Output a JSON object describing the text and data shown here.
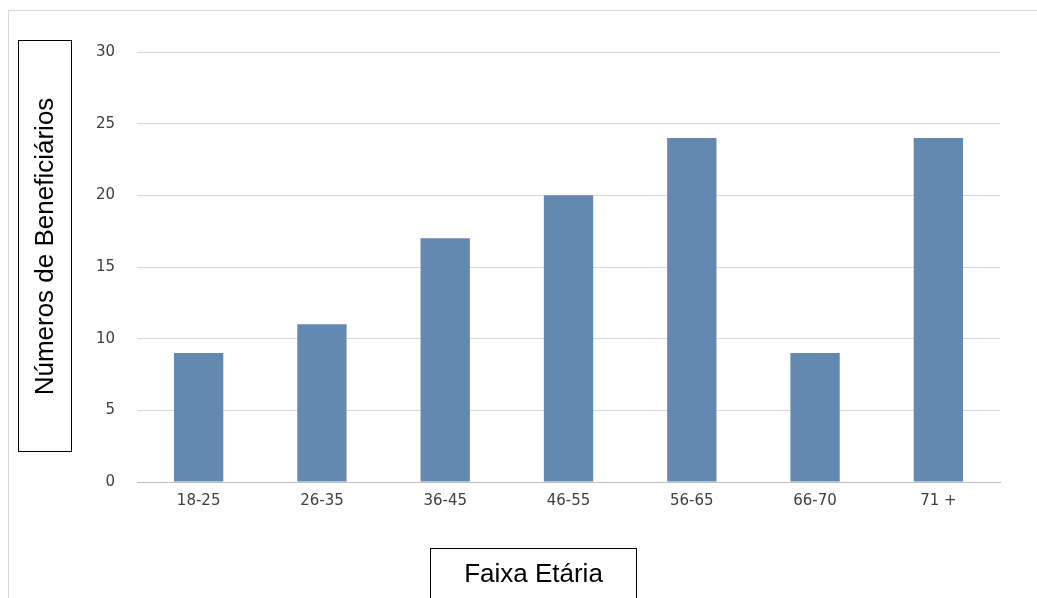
{
  "chart_data": {
    "type": "bar",
    "xlabel": "Faixa Etária",
    "ylabel": "Números de Beneficiários",
    "categories": [
      "18-25",
      "26-35",
      "36-45",
      "46-55",
      "56-65",
      "66-70",
      "71 +"
    ],
    "values": [
      9,
      11,
      17,
      20,
      24,
      9,
      24
    ],
    "color": "#6389b0",
    "ylim": [
      0,
      30
    ],
    "yticks": [
      0,
      5,
      10,
      15,
      20,
      25,
      30
    ],
    "grid": "y",
    "legend": false
  }
}
